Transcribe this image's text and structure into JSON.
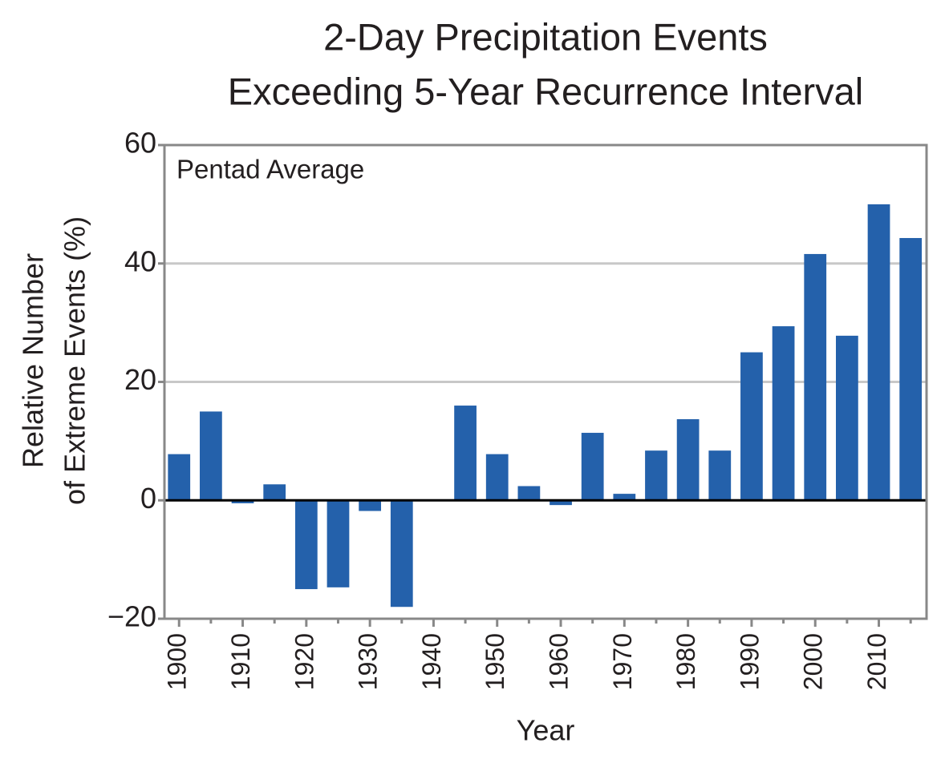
{
  "chart_data": {
    "type": "bar",
    "title": [
      "2-Day Precipitation Events",
      "Exceeding 5-Year Recurrence Interval"
    ],
    "annotation": "Pentad Average",
    "xlabel": "Year",
    "ylabel": [
      "Relative Number",
      "of Extreme Events (%)"
    ],
    "x": [
      1900,
      1905,
      1910,
      1915,
      1920,
      1925,
      1930,
      1935,
      1940,
      1945,
      1950,
      1955,
      1960,
      1965,
      1970,
      1975,
      1980,
      1985,
      1990,
      1995,
      2000,
      2005,
      2010,
      2015
    ],
    "values": [
      7.8,
      15,
      -0.5,
      2.7,
      -15,
      -14.7,
      -1.8,
      -18,
      0,
      16,
      7.8,
      2.4,
      -0.8,
      11.4,
      1.1,
      8.4,
      13.7,
      8.4,
      25,
      29.4,
      41.6,
      27.8,
      50,
      44.3
    ],
    "color": "#2461ab",
    "xlim": [
      1897.7,
      2017.5
    ],
    "xticks": [
      1900,
      1910,
      1920,
      1930,
      1940,
      1950,
      1960,
      1970,
      1980,
      1990,
      2000,
      2010
    ],
    "xminorticks": [
      1905,
      1915,
      1925,
      1935,
      1945,
      1955,
      1965,
      1975,
      1985,
      1995,
      2005,
      2015
    ],
    "ylim": [
      -20,
      60
    ],
    "yticks": [
      {
        "value": -20,
        "label": "−20"
      },
      0,
      20,
      40,
      60
    ],
    "grid": true
  }
}
